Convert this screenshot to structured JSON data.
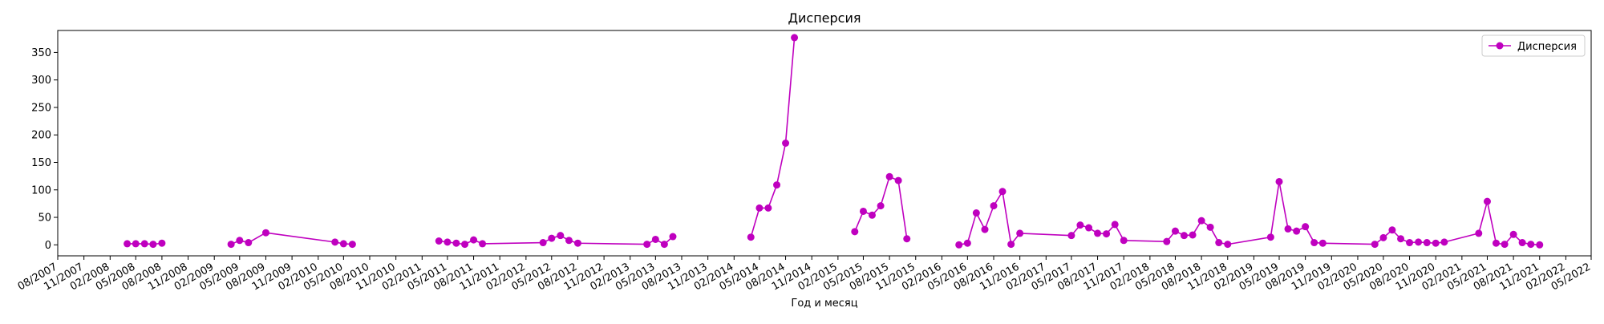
{
  "chart_data": {
    "type": "line",
    "title": "Дисперсия",
    "xlabel": "Год и месяц",
    "ylabel": "",
    "legend_position": "top-right",
    "grid": false,
    "color": "#bf00bf",
    "xlim": [
      "2007-08-01",
      "2022-05-01"
    ],
    "ylim": [
      -20,
      390
    ],
    "yticks": [
      0,
      50,
      100,
      150,
      200,
      250,
      300,
      350
    ],
    "xtick_labels": [
      "08/2007",
      "11/2007",
      "02/2008",
      "05/2008",
      "08/2008",
      "11/2008",
      "02/2009",
      "05/2009",
      "08/2009",
      "11/2009",
      "02/2010",
      "05/2010",
      "08/2010",
      "11/2010",
      "02/2011",
      "05/2011",
      "08/2011",
      "11/2011",
      "02/2012",
      "05/2012",
      "08/2012",
      "11/2012",
      "02/2013",
      "05/2013",
      "08/2013",
      "11/2013",
      "02/2014",
      "05/2014",
      "08/2014",
      "11/2014",
      "02/2015",
      "05/2015",
      "08/2015",
      "11/2015",
      "02/2016",
      "05/2016",
      "08/2016",
      "11/2016",
      "02/2017",
      "05/2017",
      "08/2017",
      "11/2017",
      "02/2018",
      "05/2018",
      "08/2018",
      "11/2018",
      "02/2019",
      "05/2019",
      "08/2019",
      "11/2019",
      "02/2020",
      "05/2020",
      "08/2020",
      "11/2020",
      "02/2021",
      "05/2021",
      "08/2021",
      "11/2021",
      "02/2022",
      "05/2022"
    ],
    "series": [
      {
        "name": "Дисперсия",
        "segments": [
          [
            [
              "2008-04-01",
              2
            ],
            [
              "2008-05-01",
              2
            ],
            [
              "2008-06-01",
              2
            ],
            [
              "2008-07-01",
              1
            ],
            [
              "2008-08-01",
              3
            ]
          ],
          [
            [
              "2009-04-01",
              1
            ],
            [
              "2009-05-01",
              8
            ],
            [
              "2009-06-01",
              4
            ],
            [
              "2009-08-01",
              22
            ],
            [
              "2010-04-01",
              5
            ],
            [
              "2010-05-01",
              2
            ],
            [
              "2010-06-01",
              1
            ]
          ],
          [
            [
              "2011-04-01",
              7
            ],
            [
              "2011-05-01",
              5
            ],
            [
              "2011-06-01",
              3
            ],
            [
              "2011-07-01",
              1
            ],
            [
              "2011-08-01",
              9
            ],
            [
              "2011-09-01",
              2
            ],
            [
              "2012-04-01",
              4
            ],
            [
              "2012-05-01",
              12
            ],
            [
              "2012-06-01",
              17
            ],
            [
              "2012-07-01",
              8
            ],
            [
              "2012-08-01",
              3
            ],
            [
              "2013-04-01",
              1
            ],
            [
              "2013-05-01",
              10
            ],
            [
              "2013-06-01",
              1
            ],
            [
              "2013-07-01",
              15
            ]
          ],
          [
            [
              "2014-04-01",
              14
            ],
            [
              "2014-05-01",
              67
            ],
            [
              "2014-06-01",
              67
            ],
            [
              "2014-07-01",
              109
            ],
            [
              "2014-08-01",
              185
            ],
            [
              "2014-09-01",
              377
            ]
          ],
          [
            [
              "2015-04-01",
              24
            ],
            [
              "2015-05-01",
              61
            ],
            [
              "2015-06-01",
              54
            ],
            [
              "2015-07-01",
              71
            ],
            [
              "2015-08-01",
              124
            ],
            [
              "2015-09-01",
              117
            ],
            [
              "2015-10-01",
              11
            ]
          ],
          [
            [
              "2016-04-01",
              0
            ],
            [
              "2016-05-01",
              3
            ],
            [
              "2016-06-01",
              58
            ],
            [
              "2016-07-01",
              28
            ],
            [
              "2016-08-01",
              71
            ],
            [
              "2016-09-01",
              97
            ],
            [
              "2016-10-01",
              1
            ],
            [
              "2016-11-01",
              21
            ],
            [
              "2017-05-01",
              17
            ],
            [
              "2017-06-01",
              36
            ],
            [
              "2017-07-01",
              31
            ],
            [
              "2017-08-01",
              21
            ],
            [
              "2017-09-01",
              20
            ],
            [
              "2017-10-01",
              37
            ],
            [
              "2017-11-01",
              8
            ],
            [
              "2018-04-01",
              6
            ],
            [
              "2018-05-01",
              25
            ],
            [
              "2018-06-01",
              17
            ],
            [
              "2018-07-01",
              18
            ],
            [
              "2018-08-01",
              44
            ],
            [
              "2018-09-01",
              32
            ],
            [
              "2018-10-01",
              4
            ],
            [
              "2018-11-01",
              1
            ],
            [
              "2019-04-01",
              14
            ],
            [
              "2019-05-01",
              115
            ],
            [
              "2019-06-01",
              29
            ],
            [
              "2019-07-01",
              25
            ],
            [
              "2019-08-01",
              33
            ],
            [
              "2019-09-01",
              4
            ],
            [
              "2019-10-01",
              3
            ],
            [
              "2020-04-01",
              1
            ],
            [
              "2020-05-01",
              13
            ],
            [
              "2020-06-01",
              27
            ],
            [
              "2020-07-01",
              11
            ],
            [
              "2020-08-01",
              4
            ],
            [
              "2020-09-01",
              5
            ],
            [
              "2020-10-01",
              4
            ],
            [
              "2020-11-01",
              3
            ],
            [
              "2020-12-01",
              5
            ],
            [
              "2021-04-01",
              21
            ],
            [
              "2021-05-01",
              79
            ],
            [
              "2021-06-01",
              3
            ],
            [
              "2021-07-01",
              1
            ],
            [
              "2021-08-01",
              19
            ],
            [
              "2021-09-01",
              4
            ],
            [
              "2021-10-01",
              1
            ],
            [
              "2021-11-01",
              0
            ]
          ]
        ]
      }
    ]
  }
}
